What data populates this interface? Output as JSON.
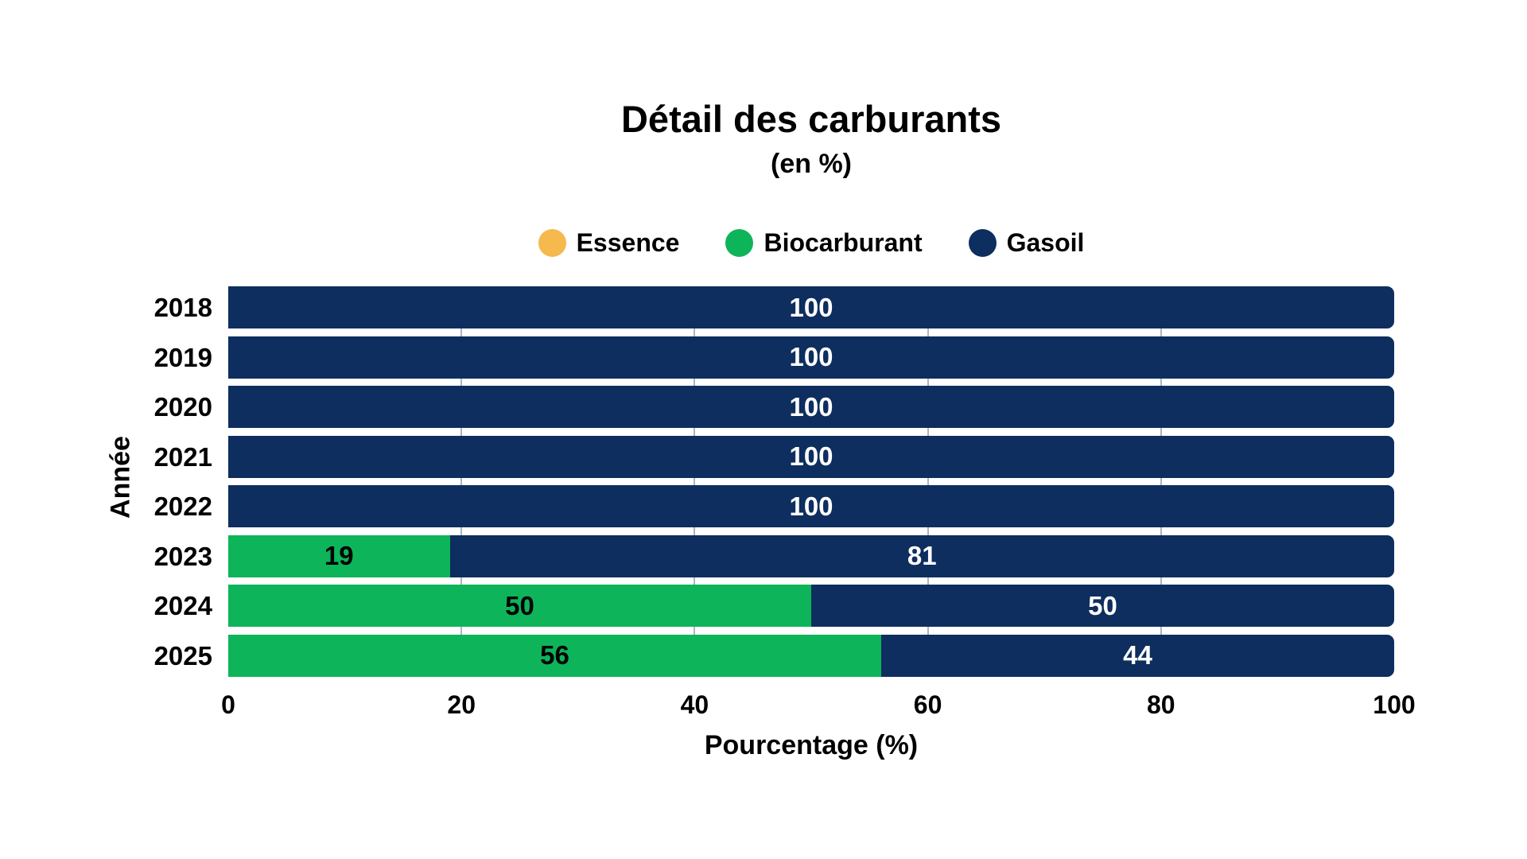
{
  "chart": {
    "title": "Détail des carburants",
    "subtitle": "(en %)",
    "xlabel": "Pourcentage (%)",
    "ylabel": "Année"
  },
  "chart_data": {
    "type": "bar",
    "orientation": "horizontal",
    "stacked": true,
    "title": "Détail des carburants",
    "subtitle": "(en %)",
    "xlabel": "Pourcentage (%)",
    "ylabel": "Année",
    "categories": [
      "2018",
      "2019",
      "2020",
      "2021",
      "2022",
      "2023",
      "2024",
      "2025"
    ],
    "series": [
      {
        "name": "Essence",
        "color": "#F6B94E",
        "label_color": "#000000",
        "values": [
          0,
          0,
          0,
          0,
          0,
          0,
          0,
          0
        ]
      },
      {
        "name": "Biocarburant",
        "color": "#0EB45A",
        "label_color": "#000000",
        "values": [
          0,
          0,
          0,
          0,
          0,
          19,
          50,
          56
        ]
      },
      {
        "name": "Gasoil",
        "color": "#0D2E5E",
        "label_color": "#FFFFFF",
        "values": [
          100,
          100,
          100,
          100,
          100,
          81,
          50,
          44
        ]
      }
    ],
    "xlim": [
      0,
      100
    ],
    "xticks": [
      0,
      20,
      40,
      60,
      80,
      100
    ],
    "grid_ticks": [
      20,
      40,
      60,
      80
    ],
    "grid": true,
    "gridline_color": "#a8b6c6",
    "legend_position": "top",
    "background_color": "#ffffff"
  }
}
